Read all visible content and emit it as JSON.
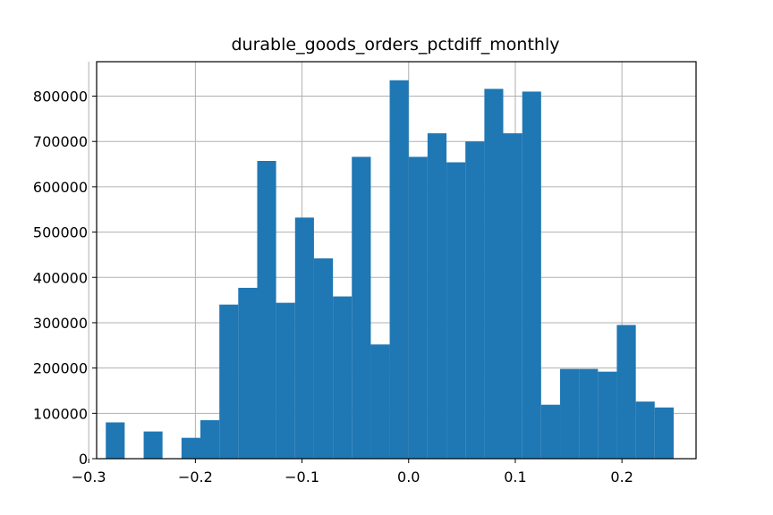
{
  "chart_data": {
    "type": "bar",
    "subtype": "histogram",
    "title": "durable_goods_orders_pctdiff_monthly",
    "xlabel": "",
    "ylabel": "",
    "xlim": [
      -0.2926,
      0.2695
    ],
    "ylim": [
      0,
      876000
    ],
    "grid": true,
    "bar_color": "#1f77b4",
    "grid_color": "#b0b0b0",
    "bin_edges": [
      -0.284,
      -0.2663,
      -0.2485,
      -0.2308,
      -0.213,
      -0.1953,
      -0.1775,
      -0.1598,
      -0.142,
      -0.1243,
      -0.1065,
      -0.0888,
      -0.071,
      -0.0533,
      -0.0355,
      -0.0178,
      0.0,
      0.0177,
      0.0355,
      0.0532,
      0.071,
      0.0887,
      0.1065,
      0.1242,
      0.142,
      0.1597,
      0.1775,
      0.1952,
      0.213,
      0.2307,
      0.2485
    ],
    "values": [
      80000,
      0,
      60000,
      0,
      46000,
      85000,
      340000,
      377000,
      657000,
      344000,
      532000,
      442000,
      358000,
      666000,
      252000,
      835000,
      666000,
      718000,
      654000,
      700000,
      816000,
      718000,
      810000,
      119000,
      198000,
      198000,
      192000,
      295000,
      126000,
      113000
    ],
    "x_ticks": [
      -0.3,
      -0.2,
      -0.1,
      0.0,
      0.1,
      0.2
    ],
    "x_tick_labels": [
      "−0.3",
      "−0.2",
      "−0.1",
      "0.0",
      "0.1",
      "0.2"
    ],
    "y_ticks": [
      0,
      100000,
      200000,
      300000,
      400000,
      500000,
      600000,
      700000,
      800000
    ],
    "y_tick_labels": [
      "0",
      "100000",
      "200000",
      "300000",
      "400000",
      "500000",
      "600000",
      "700000",
      "800000"
    ]
  }
}
